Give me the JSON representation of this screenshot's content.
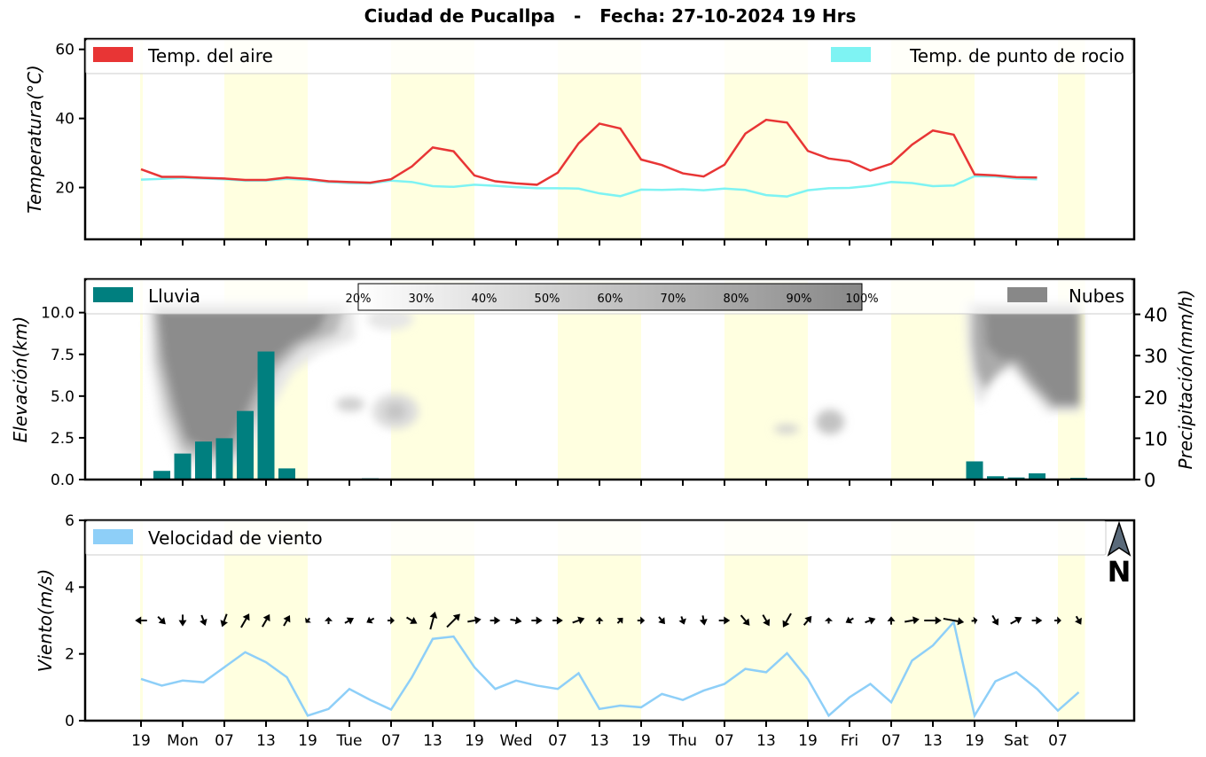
{
  "title": "Ciudad de Pucallpa   -   Fecha: 27-10-2024 19 Hrs",
  "colors": {
    "air_temp": "#e83535",
    "dew_point": "#7ef3f3",
    "rain": "#007f7f",
    "clouds": "#888888",
    "wind": "#8ecff8",
    "day_shade": "#ffffe0"
  },
  "north_label": "N",
  "chart_data": [
    {
      "type": "line",
      "id": "temperature",
      "ylabel": "Temperatura(°C)",
      "ylim": [
        5,
        63
      ],
      "yticks": [
        20,
        40,
        60
      ],
      "x": [
        0,
        1,
        2,
        3,
        4,
        5,
        6,
        7,
        8,
        9,
        10,
        11,
        12,
        13,
        14,
        15,
        16,
        17,
        18,
        19,
        20,
        21,
        22,
        23,
        24,
        25,
        26,
        27,
        28,
        29,
        30,
        31,
        32,
        33,
        34,
        35,
        36,
        37,
        38,
        39,
        40,
        41,
        42,
        43
      ],
      "series": [
        {
          "name": "Temp. del aire",
          "color": "#e83535",
          "values": [
            25.3,
            23.1,
            23.1,
            22.8,
            22.6,
            22.2,
            22.2,
            22.9,
            22.5,
            21.8,
            21.6,
            21.4,
            22.4,
            26.1,
            31.6,
            30.5,
            23.5,
            21.8,
            21.2,
            20.8,
            24.3,
            32.8,
            38.5,
            37.1,
            28.1,
            26.5,
            24.1,
            23.2,
            26.6,
            35.6,
            39.6,
            38.8,
            30.6,
            28.4,
            27.6,
            24.9,
            26.9,
            32.4,
            36.5,
            35.3,
            23.8,
            23.5,
            23.0,
            22.9
          ]
        },
        {
          "name": "Temp. de punto de rocio",
          "color": "#7ef3f3",
          "values": [
            22.3,
            22.5,
            22.8,
            22.6,
            22.4,
            22.0,
            22.0,
            22.5,
            22.2,
            21.6,
            21.3,
            21.2,
            22.0,
            21.6,
            20.4,
            20.2,
            20.8,
            20.5,
            20.1,
            19.8,
            19.8,
            19.7,
            18.3,
            17.5,
            19.4,
            19.3,
            19.5,
            19.2,
            19.7,
            19.3,
            17.8,
            17.4,
            19.2,
            19.8,
            19.9,
            20.5,
            21.6,
            21.3,
            20.4,
            20.6,
            23.3,
            23.2,
            22.6,
            22.4
          ]
        }
      ]
    },
    {
      "type": "bar",
      "id": "precipitation",
      "ylabel_left": "Elevación(km)",
      "ylabel_right": "Precipitación(mm/h)",
      "ylim_left": [
        0,
        12
      ],
      "yticks_left": [
        "0.0",
        "2.5",
        "5.0",
        "7.5",
        "10.0"
      ],
      "ylim_right": [
        0,
        48.5
      ],
      "yticks_right": [
        0,
        10,
        20,
        30,
        40
      ],
      "series": [
        {
          "name": "Lluvia",
          "color": "#007f7f",
          "values": [
            0,
            2.1,
            6.3,
            9.2,
            10.0,
            16.6,
            31.0,
            2.7,
            0,
            0,
            0,
            0.3,
            0,
            0,
            0,
            0,
            0,
            0,
            0,
            0,
            0,
            0,
            0,
            0,
            0,
            0,
            0,
            0,
            0,
            0,
            0,
            0,
            0,
            0,
            0,
            0,
            0,
            0,
            0,
            0,
            4.4,
            0.8,
            0.5,
            1.5,
            0,
            0.4
          ]
        },
        {
          "name": "Nubes",
          "color": "#888888"
        }
      ],
      "cloud_colorbar_labels": [
        "20%",
        "30%",
        "40%",
        "50%",
        "60%",
        "70%",
        "80%",
        "90%",
        "100%"
      ]
    },
    {
      "type": "line",
      "id": "wind",
      "ylabel": "Viento(m/s)",
      "ylim": [
        0,
        6
      ],
      "yticks": [
        0,
        2,
        4,
        6
      ],
      "arrow_y": 3.0,
      "series": [
        {
          "name": "Velocidad de viento",
          "color": "#8ecff8",
          "values": [
            1.25,
            1.05,
            1.2,
            1.15,
            1.6,
            2.05,
            1.75,
            1.3,
            0.15,
            0.35,
            0.95,
            0.62,
            0.33,
            1.3,
            2.45,
            2.52,
            1.6,
            0.95,
            1.2,
            1.05,
            0.95,
            1.42,
            0.35,
            0.45,
            0.4,
            0.8,
            0.62,
            0.9,
            1.1,
            1.55,
            1.45,
            2.02,
            1.25,
            0.15,
            0.7,
            1.1,
            0.55,
            1.8,
            2.25,
            2.95,
            0.15,
            1.18,
            1.45,
            0.95,
            0.3,
            0.85
          ]
        }
      ],
      "wind_dir_deg": [
        270,
        135,
        180,
        160,
        200,
        30,
        30,
        30,
        220,
        0,
        60,
        240,
        90,
        120,
        15,
        45,
        80,
        90,
        100,
        90,
        90,
        70,
        0,
        45,
        90,
        140,
        160,
        170,
        90,
        140,
        150,
        210,
        40,
        0,
        240,
        70,
        0,
        80,
        90,
        100,
        80,
        150,
        60,
        90,
        90,
        150
      ]
    }
  ],
  "x_axis": {
    "tick_labels": [
      "19",
      "Mon",
      "07",
      "13",
      "19",
      "Tue",
      "07",
      "13",
      "19",
      "Wed",
      "07",
      "13",
      "19",
      "Thu",
      "07",
      "13",
      "19",
      "Fri",
      "07",
      "13",
      "19",
      "Sat",
      "07"
    ]
  }
}
